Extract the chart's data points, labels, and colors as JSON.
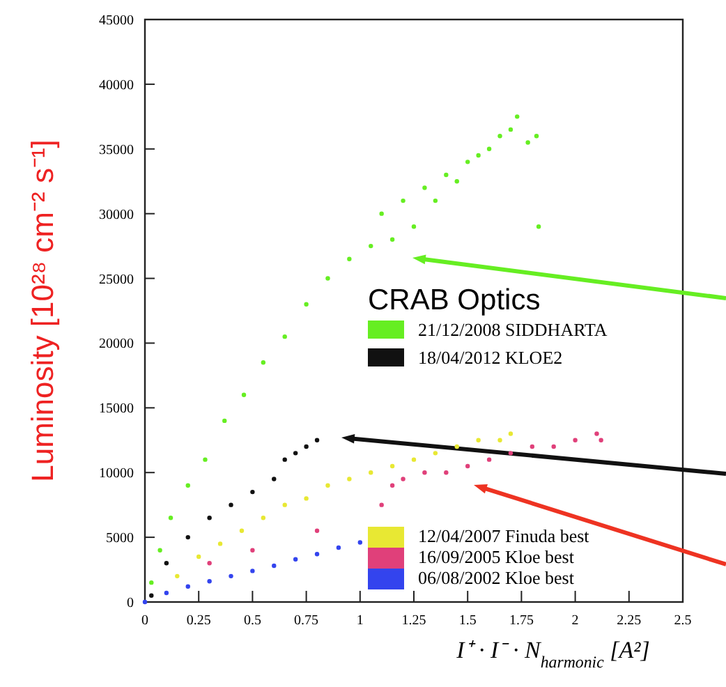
{
  "chart_data": {
    "type": "scatter",
    "xlabel": "I⁺ · I⁻ · N$_{harmonic}$  [A²]",
    "ylabel": "Luminosity [10²⁸ cm⁻² s⁻¹]",
    "legend_title": "CRAB Optics",
    "legend": "right",
    "marker": "circle",
    "xlim": [
      0,
      2.5
    ],
    "ylim": [
      0,
      45000
    ],
    "xticks": [
      0,
      0.25,
      0.5,
      0.75,
      1,
      1.25,
      1.5,
      1.75,
      2,
      2.25,
      2.5
    ],
    "yticks": [
      0,
      5000,
      10000,
      15000,
      20000,
      25000,
      30000,
      35000,
      40000,
      45000
    ],
    "series": [
      {
        "name": "21/12/2008 SIDDHARTA",
        "color": "#66ee22",
        "x": [
          0.03,
          0.07,
          0.12,
          0.2,
          0.28,
          0.37,
          0.46,
          0.55,
          0.65,
          0.75,
          0.85,
          0.95,
          1.05,
          1.1,
          1.15,
          1.2,
          1.25,
          1.3,
          1.35,
          1.4,
          1.45,
          1.5,
          1.55,
          1.6,
          1.65,
          1.7,
          1.73,
          1.78,
          1.82,
          1.83
        ],
        "values": [
          1500,
          4000,
          6500,
          9000,
          11000,
          14000,
          16000,
          18500,
          20500,
          23000,
          25000,
          26500,
          27500,
          30000,
          28000,
          31000,
          29000,
          32000,
          31000,
          33000,
          32500,
          34000,
          34500,
          35000,
          36000,
          36500,
          37500,
          35500,
          36000,
          29000
        ]
      },
      {
        "name": "18/04/2012 KLOE2",
        "color": "#111111",
        "x": [
          0.03,
          0.1,
          0.2,
          0.3,
          0.4,
          0.5,
          0.6,
          0.65,
          0.7,
          0.75,
          0.8
        ],
        "values": [
          500,
          3000,
          5000,
          6500,
          7500,
          8500,
          9500,
          11000,
          11500,
          12000,
          12500
        ]
      },
      {
        "name": "12/04/2007 Finuda best",
        "color": "#e8e833",
        "x": [
          0.15,
          0.25,
          0.35,
          0.45,
          0.55,
          0.65,
          0.75,
          0.85,
          0.95,
          1.05,
          1.15,
          1.25,
          1.35,
          1.45,
          1.55,
          1.65,
          1.7
        ],
        "values": [
          2000,
          3500,
          4500,
          5500,
          6500,
          7500,
          8000,
          9000,
          9500,
          10000,
          10500,
          11000,
          11500,
          12000,
          12500,
          12500,
          13000
        ]
      },
      {
        "name": "16/09/2005 Kloe best",
        "color": "#e0407a",
        "x": [
          0.3,
          0.5,
          0.8,
          1.1,
          1.15,
          1.2,
          1.3,
          1.4,
          1.5,
          1.6,
          1.7,
          1.8,
          1.9,
          2.0,
          2.1,
          2.12
        ],
        "values": [
          3000,
          4000,
          5500,
          7500,
          9000,
          9500,
          10000,
          10000,
          10500,
          11000,
          11500,
          12000,
          12000,
          12500,
          13000,
          12500
        ]
      },
      {
        "name": "06/08/2002 Kloe best",
        "color": "#3344ee",
        "x": [
          0,
          0.1,
          0.2,
          0.3,
          0.4,
          0.5,
          0.6,
          0.7,
          0.8,
          0.9,
          1.0
        ],
        "values": [
          0,
          700,
          1200,
          1600,
          2000,
          2400,
          2800,
          3300,
          3700,
          4200,
          4600
        ]
      }
    ]
  }
}
